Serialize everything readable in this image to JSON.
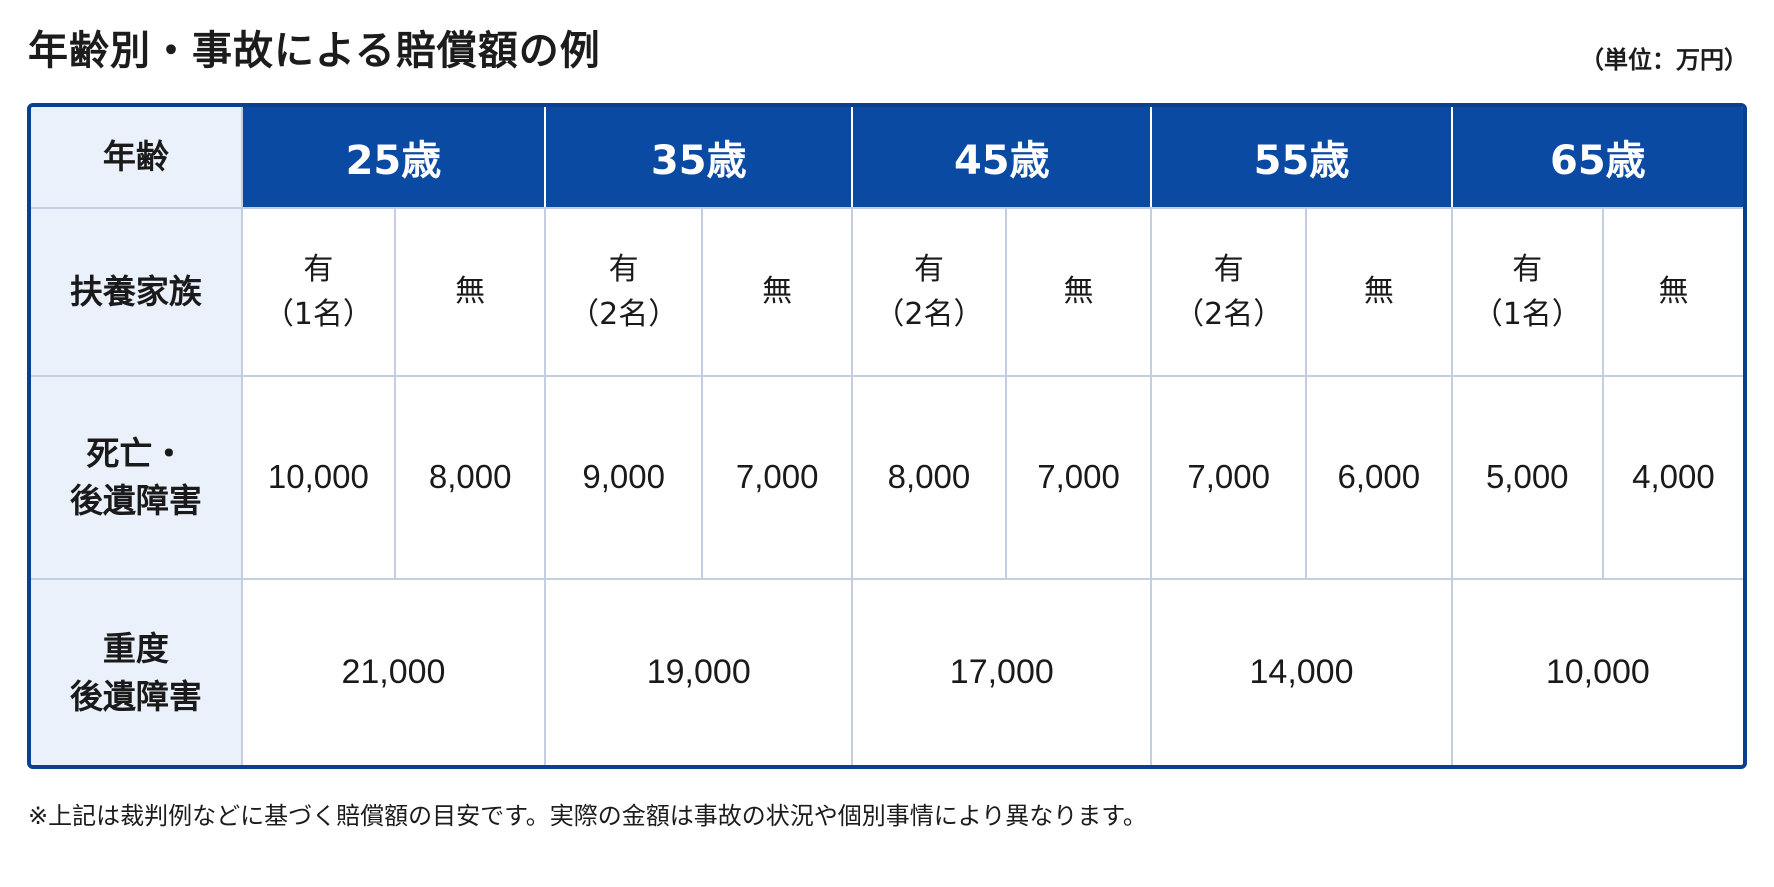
{
  "title": "年齢別・事故による賠償額の例",
  "unit_label": "（単位：万円）",
  "headers": {
    "age": "年齢",
    "dependents": "扶養家族",
    "death_line1": "死亡・",
    "death_line2": "後遺障害",
    "severe_line1": "重度",
    "severe_line2": "後遺障害"
  },
  "ages": [
    "25歳",
    "35歳",
    "45歳",
    "55歳",
    "65歳"
  ],
  "dependents": [
    {
      "with_line1": "有",
      "with_line2": "（1名）",
      "without": "無"
    },
    {
      "with_line1": "有",
      "with_line2": "（2名）",
      "without": "無"
    },
    {
      "with_line1": "有",
      "with_line2": "（2名）",
      "without": "無"
    },
    {
      "with_line1": "有",
      "with_line2": "（2名）",
      "without": "無"
    },
    {
      "with_line1": "有",
      "with_line2": "（1名）",
      "without": "無"
    }
  ],
  "death_values": [
    {
      "with": "10,000",
      "without": "8,000"
    },
    {
      "with": "9,000",
      "without": "7,000"
    },
    {
      "with": "8,000",
      "without": "7,000"
    },
    {
      "with": "7,000",
      "without": "6,000"
    },
    {
      "with": "5,000",
      "without": "4,000"
    }
  ],
  "severe_values": [
    "21,000",
    "19,000",
    "17,000",
    "14,000",
    "10,000"
  ],
  "note": "※上記は裁判例などに基づく賠償額の目安です。実際の金額は事故の状況や個別事情により異なります。",
  "colors": {
    "header_blue": "#0b4aa3",
    "border_blue": "#0b3f8f",
    "row_head_bg": "#eaf1fb"
  }
}
